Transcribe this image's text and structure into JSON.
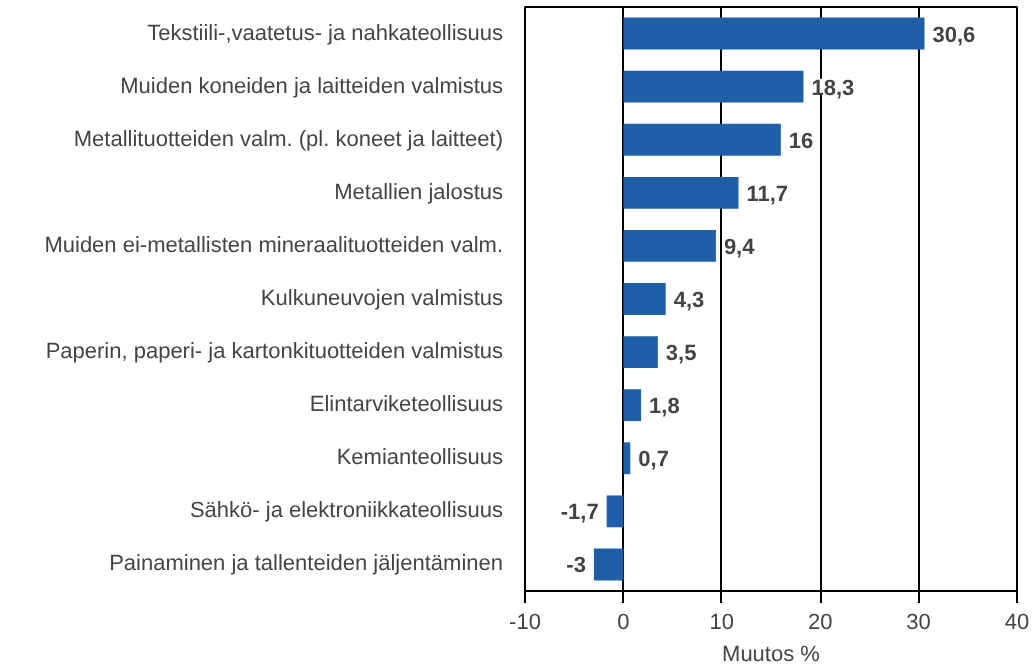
{
  "chart_data": {
    "type": "bar",
    "orientation": "horizontal",
    "xlabel": "Muutos %",
    "categories": [
      "Tekstiili-,vaatetus- ja nahkateollisuus",
      "Muiden koneiden ja laitteiden valmistus",
      "Metallituotteiden valm. (pl. koneet ja laitteet)",
      "Metallien jalostus",
      "Muiden ei-metallisten mineraalituotteiden valm.",
      "Kulkuneuvojen valmistus",
      "Paperin, paperi- ja kartonkituotteiden valmistus",
      "Elintarviketeollisuus",
      "Kemianteollisuus",
      "Sähkö- ja elektroniikkateollisuus",
      "Painaminen ja tallenteiden jäljentäminen"
    ],
    "values": [
      30.6,
      18.3,
      16,
      11.7,
      9.4,
      4.3,
      3.5,
      1.8,
      0.7,
      -1.7,
      -3
    ],
    "value_labels": [
      "30,6",
      "18,3",
      "16",
      "11,7",
      "9,4",
      "4,3",
      "3,5",
      "1,8",
      "0,7",
      "-1,7",
      "-3"
    ],
    "color": "#1f5fa8",
    "xlim": [
      -10,
      40
    ],
    "xticks": [
      -10,
      0,
      10,
      20,
      30,
      40
    ],
    "grid": "x"
  }
}
